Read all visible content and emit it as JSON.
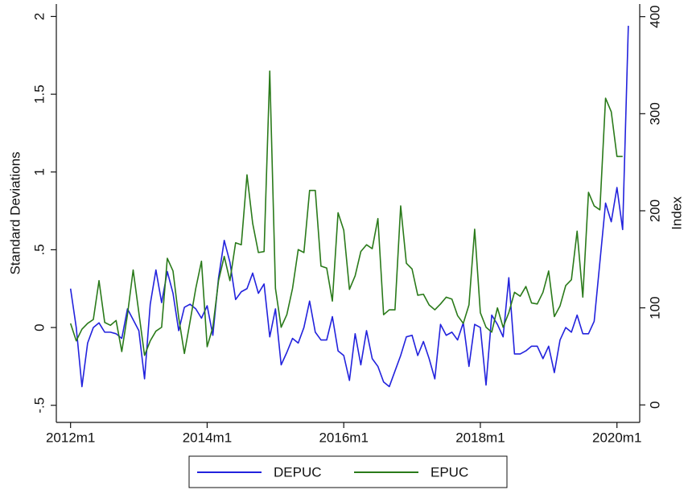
{
  "chart_data": {
    "type": "line",
    "x": [
      624,
      625,
      626,
      627,
      628,
      629,
      630,
      631,
      632,
      633,
      634,
      635,
      636,
      637,
      638,
      639,
      640,
      641,
      642,
      643,
      644,
      645,
      646,
      647,
      648,
      649,
      650,
      651,
      652,
      653,
      654,
      655,
      656,
      657,
      658,
      659,
      660,
      661,
      662,
      663,
      664,
      665,
      666,
      667,
      668,
      669,
      670,
      671,
      672,
      673,
      674,
      675,
      676,
      677,
      678,
      679,
      680,
      681,
      682,
      683,
      684,
      685,
      686,
      687,
      688,
      689,
      690,
      691,
      692,
      693,
      694,
      695,
      696,
      697,
      698,
      699,
      700,
      701,
      702,
      703,
      704,
      705,
      706,
      707,
      708,
      709,
      710,
      711,
      712,
      713,
      714,
      715,
      716,
      717,
      718,
      719,
      720,
      721,
      722
    ],
    "xlim": [
      621.5,
      724
    ],
    "xticks": [
      {
        "value": 624,
        "label": "2012m1"
      },
      {
        "value": 648,
        "label": "2014m1"
      },
      {
        "value": 672,
        "label": "2016m1"
      },
      {
        "value": 696,
        "label": "2018m1"
      },
      {
        "value": 720,
        "label": "2020m1"
      }
    ],
    "ylabel": "Standard Deviations",
    "ylim": [
      -0.61,
      2.08
    ],
    "yticks": [
      {
        "value": -0.5,
        "label": "-.5"
      },
      0,
      {
        "value": 0.5,
        "label": ".5"
      },
      1,
      1.5,
      2
    ],
    "y2label": "Index",
    "y2lim": [
      -18,
      413
    ],
    "y2ticks": [
      0,
      100,
      200,
      300,
      400
    ],
    "legend": "bottom",
    "series": [
      {
        "name": "DEPUC",
        "color": "#2222dd",
        "values": [
          0.25,
          0.0,
          -0.38,
          -0.1,
          0.0,
          0.03,
          -0.03,
          -0.03,
          -0.04,
          -0.07,
          0.12,
          0.05,
          -0.02,
          -0.33,
          0.15,
          0.37,
          0.16,
          0.36,
          0.22,
          -0.02,
          0.13,
          0.15,
          0.12,
          0.06,
          0.14,
          -0.05,
          0.32,
          0.56,
          0.42,
          0.18,
          0.23,
          0.25,
          0.35,
          0.22,
          0.28,
          -0.06,
          0.12,
          -0.24,
          -0.16,
          -0.07,
          -0.1,
          0.0,
          0.17,
          -0.03,
          -0.08,
          -0.08,
          0.07,
          -0.15,
          -0.18,
          -0.34,
          -0.04,
          -0.24,
          -0.02,
          -0.2,
          -0.25,
          -0.35,
          -0.38,
          -0.28,
          -0.18,
          -0.06,
          -0.05,
          -0.18,
          -0.09,
          -0.2,
          -0.33,
          0.02,
          -0.05,
          -0.03,
          -0.08,
          0.03,
          -0.25,
          0.02,
          0.0,
          -0.37,
          0.08,
          0.02,
          -0.06,
          0.32,
          -0.17,
          -0.17,
          -0.15,
          -0.12,
          -0.12,
          -0.2,
          -0.12,
          -0.29,
          -0.08,
          0.0,
          -0.03,
          0.08,
          -0.04,
          -0.04,
          0.04,
          0.42,
          0.8,
          0.68,
          0.9,
          0.63,
          1.94
        ]
      },
      {
        "name": "EPUC",
        "color": "#2a7a1a",
        "axis": "y2",
        "values": [
          84,
          66,
          78,
          84,
          88,
          128,
          85,
          82,
          87,
          55,
          93,
          139,
          95,
          51,
          66,
          76,
          80,
          151,
          138,
          90,
          53,
          86,
          120,
          148,
          60,
          80,
          128,
          153,
          128,
          167,
          165,
          237,
          187,
          157,
          158,
          344,
          120,
          80,
          93,
          120,
          160,
          157,
          221,
          221,
          143,
          141,
          107,
          198,
          180,
          119,
          133,
          158,
          165,
          161,
          192,
          93,
          98,
          98,
          205,
          146,
          140,
          113,
          114,
          103,
          98,
          104,
          111,
          109,
          92,
          84,
          103,
          181,
          95,
          80,
          75,
          100,
          80,
          95,
          116,
          112,
          122,
          105,
          104,
          116,
          138,
          91,
          102,
          123,
          129,
          179,
          111,
          219,
          205,
          201,
          316,
          302,
          256,
          256,
          null
        ]
      }
    ]
  }
}
